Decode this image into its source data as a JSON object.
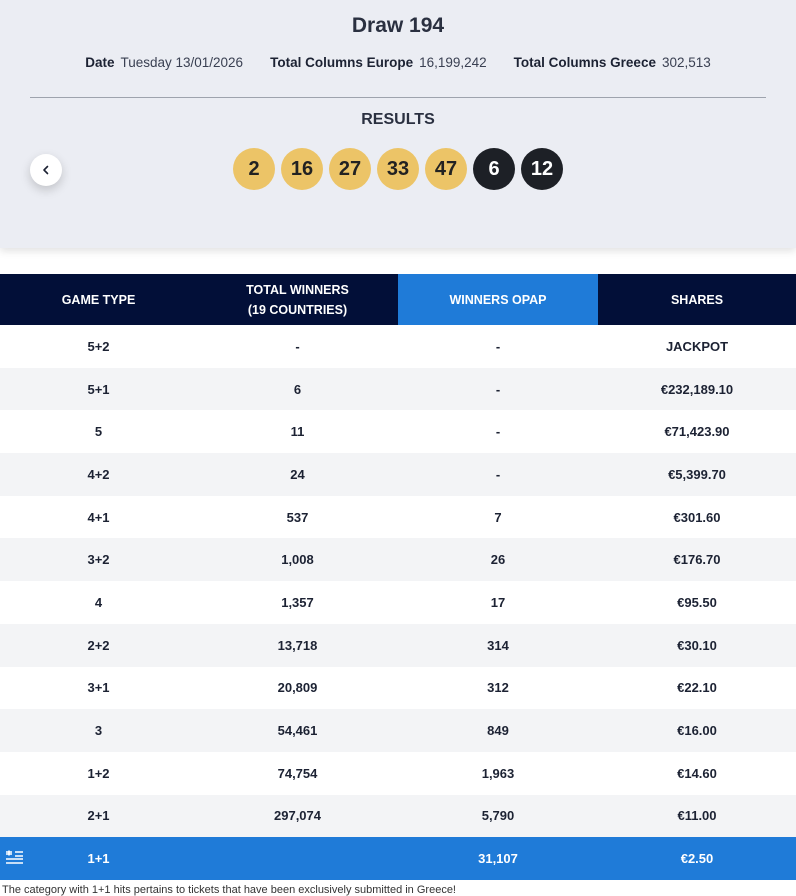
{
  "draw": {
    "title": "Draw 194",
    "date_label": "Date",
    "date_value": "Tuesday 13/01/2026",
    "europe_label": "Total Columns Europe",
    "europe_value": "16,199,242",
    "greece_label": "Total Columns Greece",
    "greece_value": "302,513",
    "results_label": "RESULTS",
    "main_numbers": [
      "2",
      "16",
      "27",
      "33",
      "47"
    ],
    "star_numbers": [
      "6",
      "12"
    ]
  },
  "table": {
    "headers": {
      "game_type": "GAME TYPE",
      "total_winners_line1": "TOTAL WINNERS",
      "total_winners_line2": "(19 COUNTRIES)",
      "winners_opap": "WINNERS OPAP",
      "shares": "SHARES"
    },
    "rows": [
      {
        "type": "5+2",
        "total": "-",
        "opap": "-",
        "share": "JACKPOT"
      },
      {
        "type": "5+1",
        "total": "6",
        "opap": "-",
        "share": "€232,189.10"
      },
      {
        "type": "5",
        "total": "11",
        "opap": "-",
        "share": "€71,423.90"
      },
      {
        "type": "4+2",
        "total": "24",
        "opap": "-",
        "share": "€5,399.70"
      },
      {
        "type": "4+1",
        "total": "537",
        "opap": "7",
        "share": "€301.60"
      },
      {
        "type": "3+2",
        "total": "1,008",
        "opap": "26",
        "share": "€176.70"
      },
      {
        "type": "4",
        "total": "1,357",
        "opap": "17",
        "share": "€95.50"
      },
      {
        "type": "2+2",
        "total": "13,718",
        "opap": "314",
        "share": "€30.10"
      },
      {
        "type": "3+1",
        "total": "20,809",
        "opap": "312",
        "share": "€22.10"
      },
      {
        "type": "3",
        "total": "54,461",
        "opap": "849",
        "share": "€16.00"
      },
      {
        "type": "1+2",
        "total": "74,754",
        "opap": "1,963",
        "share": "€14.60"
      },
      {
        "type": "2+1",
        "total": "297,074",
        "opap": "5,790",
        "share": "€11.00"
      }
    ],
    "greek_row": {
      "type": "1+1",
      "total": "",
      "opap": "31,107",
      "share": "€2.50",
      "icon": "greek-flag-icon"
    }
  },
  "footnote": "The category with 1+1 hits pertains to tickets that have been exclusively submitted in Greece!",
  "colors": {
    "header_navy": "#020f38",
    "accent_blue": "#1f7bd8",
    "ball_gold": "#ecc467",
    "ball_dark": "#1d2026"
  }
}
